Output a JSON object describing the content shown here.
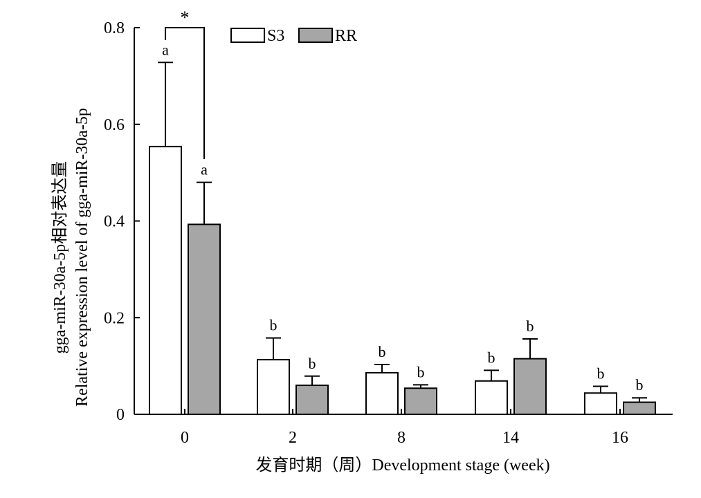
{
  "chart_data": {
    "type": "bar",
    "categories": [
      "0",
      "2",
      "8",
      "14",
      "16"
    ],
    "series": [
      {
        "name": "S3",
        "color": "#ffffff",
        "values": [
          0.554,
          0.113,
          0.086,
          0.069,
          0.044
        ],
        "errors": [
          0.174,
          0.045,
          0.017,
          0.022,
          0.014
        ],
        "letters": [
          "a",
          "b",
          "b",
          "b",
          "b"
        ]
      },
      {
        "name": "RR",
        "color": "#a6a6a6",
        "values": [
          0.393,
          0.06,
          0.054,
          0.115,
          0.025
        ],
        "errors": [
          0.087,
          0.019,
          0.007,
          0.041,
          0.009
        ],
        "letters": [
          "a",
          "b",
          "b",
          "b",
          "b"
        ]
      }
    ],
    "ylim": [
      0,
      0.8
    ],
    "yticks": [
      0,
      0.2,
      0.4,
      0.6,
      0.8
    ],
    "ytick_labels": [
      "0",
      "0.2",
      "0.4",
      "0.6",
      "0.8"
    ],
    "xlabel": "发育时期（周）Development stage (week)",
    "ylabel_lines": [
      "gga-miR-30a-5p相对表达量",
      "Relative expression level of gga-miR-30a-5p"
    ],
    "significance": {
      "category": "0",
      "symbol": "*"
    },
    "legend_position": "top"
  }
}
